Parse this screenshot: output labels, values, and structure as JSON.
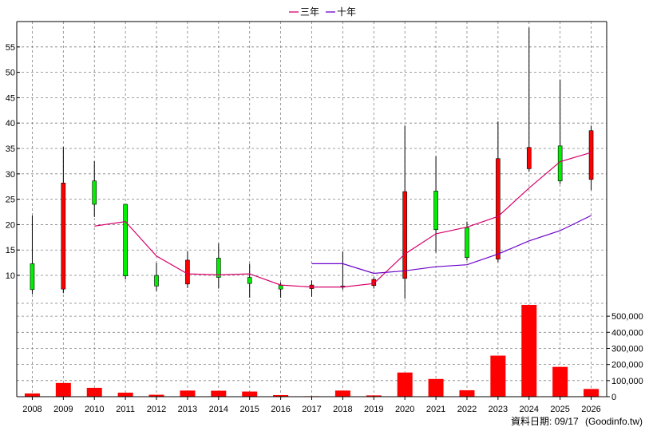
{
  "chart_data": {
    "type": "candlestick+volume",
    "title": "",
    "legend": {
      "placement": "top-center",
      "items": [
        {
          "label": "三年",
          "color": "#d6006b"
        },
        {
          "label": "十年",
          "color": "#6a00c8"
        }
      ]
    },
    "years": [
      "2008",
      "2009",
      "2010",
      "2011",
      "2012",
      "2013",
      "2014",
      "2015",
      "2016",
      "2017",
      "2018",
      "2019",
      "2020",
      "2021",
      "2022",
      "2023",
      "2024",
      "2025",
      "2026"
    ],
    "price_axis": {
      "ylim": [
        4.5,
        60
      ],
      "ticks": [
        10,
        15,
        20,
        25,
        30,
        35,
        40,
        45,
        50,
        55
      ],
      "side": "left",
      "grid": true
    },
    "volume_axis": {
      "ylim": [
        0,
        580000
      ],
      "ticks": [
        0,
        100000,
        200000,
        300000,
        400000,
        500000
      ],
      "tick_labels": [
        "0",
        "100,000",
        "200,000",
        "300,000",
        "400,000",
        "500,000"
      ],
      "side": "right",
      "grid": true
    },
    "colors": {
      "up": "#ff0000",
      "down": "#00ee00",
      "volume": "#ff0000",
      "grid": "#808080",
      "wick": "#000000"
    },
    "candles": [
      {
        "year": "2008",
        "open": 12.3,
        "close": 7.2,
        "high": 21.8,
        "low": 6.3
      },
      {
        "year": "2009",
        "open": 7.3,
        "close": 28.2,
        "high": 35.3,
        "low": 6.5
      },
      {
        "year": "2010",
        "open": 28.6,
        "close": 24.0,
        "high": 32.5,
        "low": 21.5
      },
      {
        "year": "2011",
        "open": 24.0,
        "close": 9.9,
        "high": 24.0,
        "low": 9.2
      },
      {
        "year": "2012",
        "open": 10.0,
        "close": 7.9,
        "high": 12.5,
        "low": 6.9
      },
      {
        "year": "2013",
        "open": 8.3,
        "close": 13.0,
        "high": 14.8,
        "low": 7.5
      },
      {
        "year": "2014",
        "open": 13.4,
        "close": 9.6,
        "high": 16.3,
        "low": 7.4
      },
      {
        "year": "2015",
        "open": 9.6,
        "close": 8.4,
        "high": 12.3,
        "low": 5.6
      },
      {
        "year": "2016",
        "open": 8.0,
        "close": 7.3,
        "high": 8.6,
        "low": 5.6
      },
      {
        "year": "2017",
        "open": 7.4,
        "close": 8.1,
        "high": 9.0,
        "low": 5.8
      },
      {
        "year": "2018",
        "open": 7.7,
        "close": 7.9,
        "high": 14.7,
        "low": 7.2
      },
      {
        "year": "2019",
        "open": 8.0,
        "close": 9.2,
        "high": 9.6,
        "low": 7.4
      },
      {
        "year": "2020",
        "open": 9.4,
        "close": 26.5,
        "high": 39.5,
        "low": 5.4
      },
      {
        "year": "2021",
        "open": 26.6,
        "close": 19.0,
        "high": 33.5,
        "low": 14.5
      },
      {
        "year": "2022",
        "open": 19.4,
        "close": 13.5,
        "high": 20.6,
        "low": 12.9
      },
      {
        "year": "2023",
        "open": 13.2,
        "close": 33.0,
        "high": 40.3,
        "low": 12.6
      },
      {
        "year": "2024",
        "open": 31.0,
        "close": 35.2,
        "high": 58.8,
        "low": 30.5
      },
      {
        "year": "2025",
        "open": 35.5,
        "close": 28.6,
        "high": 48.5,
        "low": 28.0
      },
      {
        "year": "2026",
        "open": 28.9,
        "close": 38.5,
        "high": 39.5,
        "low": 26.8
      }
    ],
    "series": [
      {
        "name": "三年",
        "color": "#d6006b",
        "start_year": "2010",
        "values": [
          19.7,
          20.6,
          13.8,
          10.3,
          10.1,
          10.3,
          8.1,
          7.7,
          7.7,
          8.4,
          14.2,
          18.2,
          19.5,
          21.6,
          27.2,
          32.4,
          34.2
        ]
      },
      {
        "name": "十年",
        "color": "#6a00c8",
        "start_year": "2017",
        "values": [
          12.3,
          12.3,
          10.4,
          10.9,
          11.7,
          12.1,
          14.2,
          16.8,
          18.8,
          21.8
        ]
      }
    ],
    "volume": [
      20000,
      85000,
      55000,
      25000,
      12000,
      38000,
      37000,
      32000,
      10000,
      3000,
      38000,
      8000,
      150000,
      110000,
      40000,
      255000,
      570000,
      185000,
      48000
    ]
  },
  "footer": {
    "date_label": "資料日期: 09/17",
    "source": "(Goodinfo.tw)"
  }
}
